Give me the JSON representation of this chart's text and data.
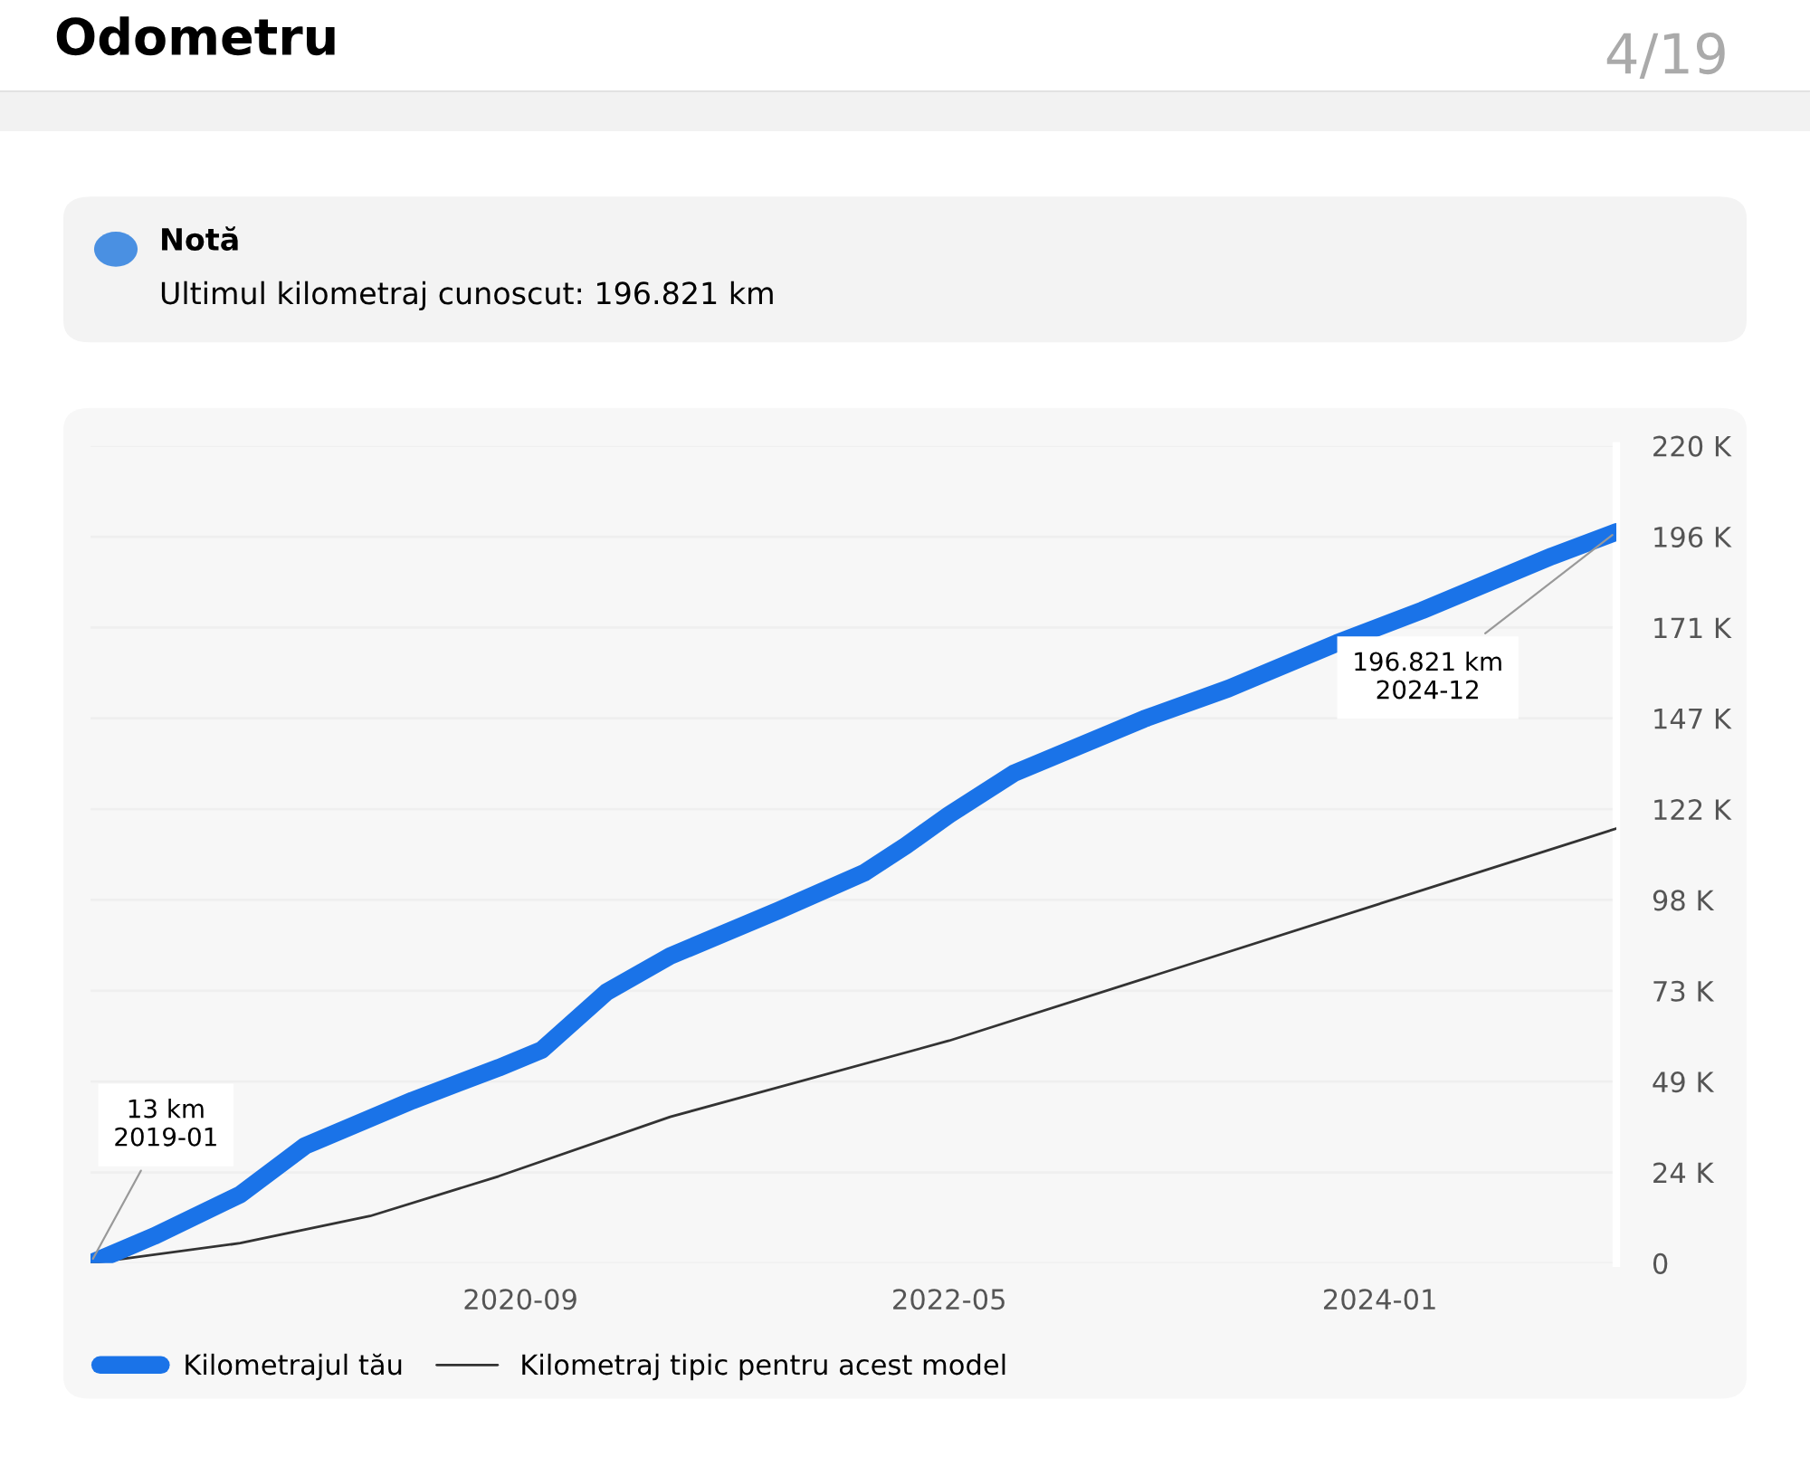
{
  "chart_data": {
    "type": "line",
    "title": "Odometru",
    "annotations": [
      "4/19",
      "Notă",
      "Ultimul kilometraj cunoscut: 196.821 km",
      {
        "text": "13 km\n2019-01",
        "x": "2019-01",
        "y": 13
      },
      {
        "text": "196.821 km\n2024-12",
        "x": "2024-12",
        "y": 196821
      }
    ],
    "series": [
      {
        "name": "Kilometrajul tău",
        "color": "#1a73e8",
        "x": [
          "2019-01",
          "2019-04",
          "2019-08",
          "2019-11",
          "2020-04",
          "2020-08",
          "2020-10",
          "2021-01",
          "2021-04",
          "2021-09",
          "2022-01",
          "2022-03",
          "2022-05",
          "2022-08",
          "2023-02",
          "2023-06",
          "2023-11",
          "2024-03",
          "2024-09",
          "2024-12"
        ],
        "values": [
          13,
          7300,
          18500,
          31600,
          43800,
          52600,
          57400,
          73000,
          82700,
          94900,
          105100,
          112400,
          120700,
          131900,
          146500,
          154700,
          166900,
          175700,
          190300,
          196821
        ]
      },
      {
        "name": "Kilometraj tipic pentru acest model",
        "color": "#333333",
        "x": [
          "2019-01",
          "2019-08",
          "2020-02",
          "2020-08",
          "2021-04",
          "2022-05",
          "2024-12"
        ],
        "values": [
          0,
          5400,
          12700,
          23400,
          39400,
          59900,
          117000
        ]
      }
    ],
    "xlim": [
      "2019-01",
      "2024-12"
    ],
    "xticks": [
      "2020-09",
      "2022-05",
      "2024-01"
    ],
    "ylim": [
      0,
      220000
    ],
    "yticks": [
      0,
      {
        "value": 24444,
        "label": "24 K"
      },
      {
        "value": 48889,
        "label": "49 K"
      },
      {
        "value": 73333,
        "label": "73 K"
      },
      {
        "value": 97778,
        "label": "98 K"
      },
      {
        "value": 122222,
        "label": "122 K"
      },
      {
        "value": 146667,
        "label": "147 K"
      },
      {
        "value": 171111,
        "label": "171 K"
      },
      {
        "value": 195556,
        "label": "196 K"
      },
      {
        "value": 220000,
        "label": "220 K"
      }
    ],
    "grid": "y",
    "legend": "bottom"
  }
}
